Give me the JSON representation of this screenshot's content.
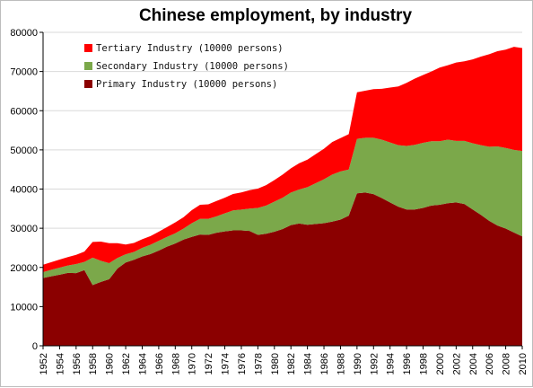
{
  "chart_data": {
    "type": "area",
    "stacked": true,
    "title": "Chinese employment, by industry",
    "xlabel": "",
    "ylabel": "",
    "ylim": [
      0,
      80000
    ],
    "yticks": [
      "0",
      "10000",
      "20000",
      "30000",
      "40000",
      "50000",
      "60000",
      "70000",
      "80000"
    ],
    "xticks": [
      "1952",
      "1954",
      "1956",
      "1958",
      "1960",
      "1962",
      "1964",
      "1966",
      "1968",
      "1970",
      "1972",
      "1974",
      "1976",
      "1978",
      "1980",
      "1982",
      "1984",
      "1986",
      "1988",
      "1990",
      "1992",
      "1994",
      "1996",
      "1998",
      "2000",
      "2002",
      "2004",
      "2006",
      "2008",
      "2010"
    ],
    "grid": "horizontal",
    "legend_position": "top-left",
    "x": [
      1952,
      1953,
      1954,
      1955,
      1956,
      1957,
      1958,
      1959,
      1960,
      1961,
      1962,
      1963,
      1964,
      1965,
      1966,
      1967,
      1968,
      1969,
      1970,
      1971,
      1972,
      1973,
      1974,
      1975,
      1976,
      1977,
      1978,
      1979,
      1980,
      1981,
      1982,
      1983,
      1984,
      1985,
      1986,
      1987,
      1988,
      1989,
      1990,
      1991,
      1992,
      1993,
      1994,
      1995,
      1996,
      1997,
      1998,
      1999,
      2000,
      2001,
      2002,
      2003,
      2004,
      2005,
      2006,
      2007,
      2008,
      2009,
      2010
    ],
    "series": [
      {
        "name": "Primary Industry (10000 persons)",
        "color": "#8b0000",
        "values": [
          17300,
          17750,
          18150,
          18600,
          18550,
          19300,
          15500,
          16300,
          17000,
          19700,
          21250,
          21950,
          22800,
          23400,
          24300,
          25300,
          26100,
          27100,
          27800,
          28400,
          28300,
          28850,
          29200,
          29450,
          29450,
          29300,
          28300,
          28600,
          29100,
          29800,
          30800,
          31200,
          30900,
          31100,
          31300,
          31700,
          32200,
          33200,
          38900,
          39100,
          38700,
          37700,
          36600,
          35500,
          34800,
          34800,
          35200,
          35800,
          36000,
          36400,
          36600,
          36200,
          34800,
          33400,
          31900,
          30700,
          29900,
          28900,
          27900
        ]
      },
      {
        "name": "Secondary Industry (10000 persons)",
        "color": "#7ba84a",
        "values": [
          1500,
          1650,
          1800,
          1900,
          2300,
          2100,
          7000,
          5400,
          4100,
          2700,
          2100,
          2000,
          2200,
          2400,
          2500,
          2500,
          2600,
          2800,
          3500,
          4000,
          4100,
          4200,
          4600,
          5100,
          5300,
          5700,
          6900,
          7200,
          7700,
          8000,
          8300,
          8700,
          9600,
          10400,
          11200,
          12000,
          12300,
          11800,
          13900,
          14000,
          14400,
          14900,
          15300,
          15700,
          16200,
          16500,
          16600,
          16400,
          16200,
          16200,
          15700,
          16100,
          16900,
          17800,
          18900,
          20200,
          20600,
          21100,
          21800
        ]
      },
      {
        "name": "Tertiary Industry (10000 persons)",
        "color": "#ff0000",
        "values": [
          1900,
          1950,
          2050,
          2150,
          2350,
          2650,
          4000,
          4900,
          5100,
          3800,
          2500,
          2300,
          2200,
          2200,
          2300,
          2500,
          2800,
          2900,
          3300,
          3600,
          3700,
          3900,
          4000,
          4200,
          4400,
          4700,
          4900,
          5200,
          5500,
          5900,
          6200,
          6700,
          7000,
          7400,
          7800,
          8300,
          8500,
          9000,
          11900,
          12000,
          12400,
          13000,
          14000,
          15000,
          16100,
          16900,
          17300,
          17800,
          18800,
          19000,
          20000,
          20300,
          21400,
          22600,
          23600,
          24300,
          25100,
          26300,
          26300
        ]
      }
    ]
  }
}
